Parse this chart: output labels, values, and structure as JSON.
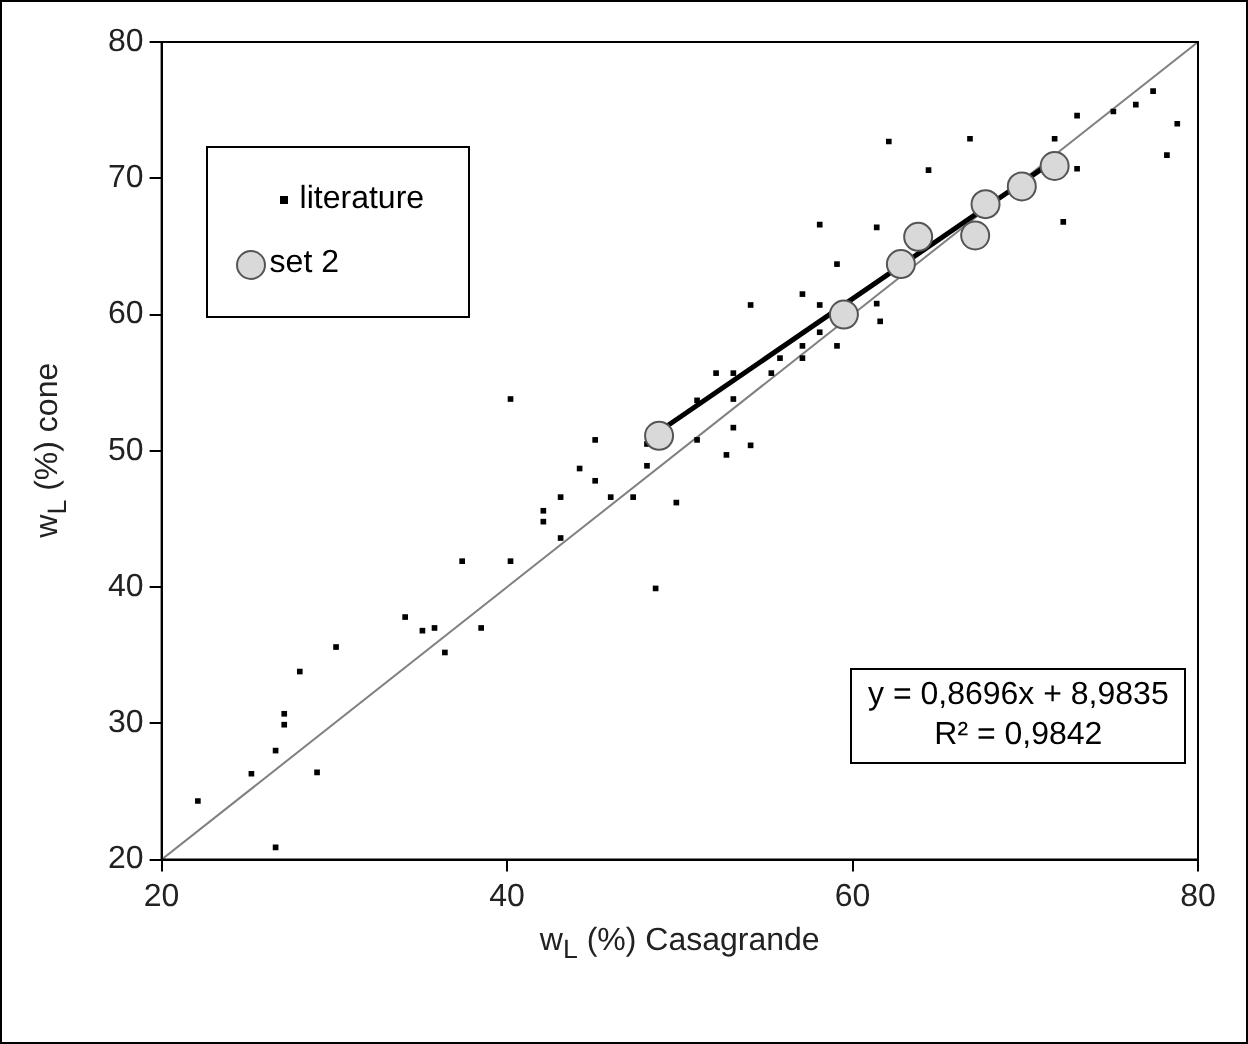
{
  "chart_data": {
    "type": "scatter",
    "xlabel": "w$_{L}$ (%) Casagrande",
    "ylabel": "w$_{L}$ (%) cone",
    "xlim": [
      20,
      80
    ],
    "xticks": [
      20,
      40,
      60,
      80
    ],
    "ylim": [
      20,
      80
    ],
    "yticks": [
      20,
      30,
      40,
      50,
      60,
      70,
      80
    ],
    "grid": false,
    "legend": "top left",
    "annotations": [
      "y = 0,8696x + 8,9835\nR² = 0,9842"
    ],
    "series": [
      {
        "name": "literature",
        "color": "#000000",
        "marker": "square",
        "x": [
          22.1,
          25.2,
          26.6,
          26.6,
          27.1,
          27.1,
          28.0,
          29.0,
          30.1,
          34.1,
          35.1,
          35.8,
          36.4,
          37.4,
          38.5,
          40.2,
          42.1,
          42.1,
          43.1,
          48.6,
          40.2,
          45.1,
          44.2,
          45.1,
          43.1,
          46.0,
          47.3,
          48.1,
          48.1,
          49.8,
          51.0,
          51.0,
          52.1,
          53.1,
          53.1,
          53.1,
          52.7,
          54.1,
          54.1,
          55.3,
          55.8,
          57.1,
          57.1,
          57.1,
          58.1,
          58.1,
          59.1,
          59.1,
          58.1,
          61.4,
          61.4,
          61.6,
          62.1,
          64.4,
          66.8,
          71.7,
          72.2,
          73.0,
          73.0,
          75.1,
          76.4,
          77.4,
          78.8,
          78.2
        ],
        "values": [
          24.3,
          26.3,
          28.0,
          20.9,
          30.7,
          29.9,
          33.8,
          26.4,
          35.6,
          37.8,
          36.8,
          37.0,
          35.2,
          41.9,
          37.0,
          41.9,
          45.6,
          44.8,
          43.6,
          39.9,
          53.8,
          50.8,
          48.7,
          47.8,
          46.6,
          46.6,
          46.6,
          50.5,
          48.9,
          46.2,
          53.7,
          50.8,
          55.7,
          55.7,
          53.8,
          51.7,
          49.7,
          50.4,
          60.7,
          55.7,
          56.8,
          57.7,
          56.8,
          61.5,
          60.7,
          58.7,
          63.7,
          57.7,
          66.6,
          66.4,
          60.8,
          59.5,
          72.7,
          70.6,
          72.9,
          72.9,
          66.8,
          74.6,
          70.7,
          74.9,
          75.4,
          76.4,
          74.0,
          71.7
        ]
      },
      {
        "name": "set 2",
        "color": "#d9d9d9",
        "marker": "circle",
        "x": [
          48.8,
          59.5,
          62.8,
          63.8,
          67.1,
          67.7,
          69.8,
          71.7
        ],
        "values": [
          51.1,
          60.0,
          63.7,
          65.7,
          65.8,
          68.1,
          69.4,
          70.9
        ]
      },
      {
        "type": "line",
        "color": "#000000",
        "marker": "none",
        "line_style": "solid",
        "x": [
          48.8,
          71.7
        ],
        "values": [
          51.42,
          71.33
        ]
      },
      {
        "type": "line",
        "color": "#808080",
        "marker": "none",
        "line_style": "solid",
        "x": [
          20,
          80
        ],
        "values": [
          20,
          80
        ]
      }
    ]
  }
}
